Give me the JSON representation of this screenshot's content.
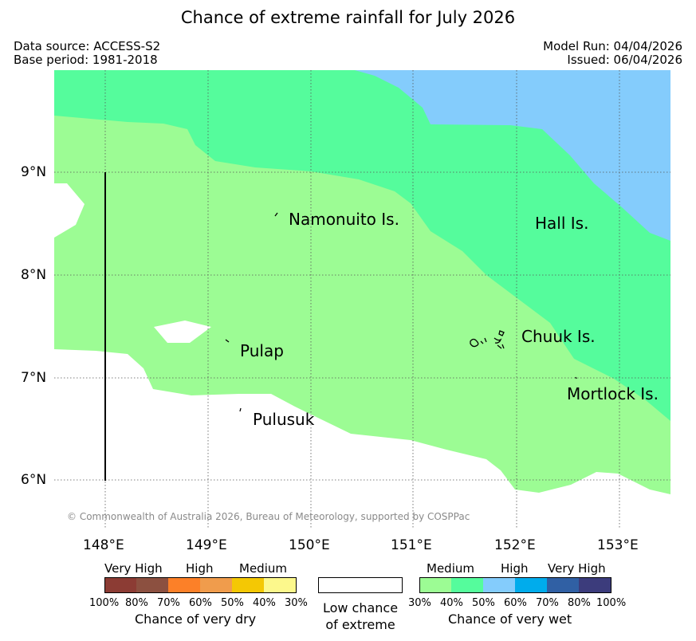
{
  "title": "Chance of extreme rainfall for July 2026",
  "header": {
    "data_source": "Data source: ACCESS-S2",
    "base_period": "Base period: 1981-2018",
    "model_run": "Model Run: 04/04/2026",
    "issued": "Issued: 06/04/2026"
  },
  "axes": {
    "lat_labels": [
      "9°N",
      "8°N",
      "7°N",
      "6°N"
    ],
    "lon_labels": [
      "148°E",
      "149°E",
      "150°E",
      "151°E",
      "152°E",
      "153°E"
    ]
  },
  "places": {
    "namonuito": "Namonuito Is.",
    "hall": "Hall Is.",
    "pulap": "Pulap",
    "chuuk": "Chuuk Is.",
    "mortlock": "Mortlock Is.",
    "pulusuk": "Pulusuk"
  },
  "copyright": "© Commonwealth of Australia 2026, Bureau of Meteorology, supported by COSPPac",
  "colors": {
    "wet_30_40": "#9cfc94",
    "wet_40_50": "#55fc9c",
    "wet_50_60": "#84ccfc",
    "wet_60_70": "#00acec",
    "wet_70_80": "#3060a4",
    "wet_80_100": "#3c3c7c",
    "dry_80_100": "#8c3c34",
    "dry_70_80": "#8c5040",
    "dry_60_70": "#fc8028",
    "dry_50_60": "#f09c4c",
    "dry_40_50": "#f4c804",
    "dry_30_40": "#fcf88c",
    "grid": "#555555"
  },
  "legend": {
    "dry": {
      "headings": [
        "Very High",
        "High",
        "Medium"
      ],
      "ticks": [
        "100%",
        "80%",
        "70%",
        "60%",
        "50%",
        "40%",
        "30%"
      ],
      "caption": "Chance of very dry"
    },
    "low": {
      "line1": "Low chance",
      "line2": "of extreme"
    },
    "wet": {
      "headings": [
        "Medium",
        "High",
        "Very High"
      ],
      "ticks": [
        "30%",
        "40%",
        "50%",
        "60%",
        "70%",
        "80%",
        "100%"
      ],
      "caption": "Chance of very wet"
    }
  }
}
